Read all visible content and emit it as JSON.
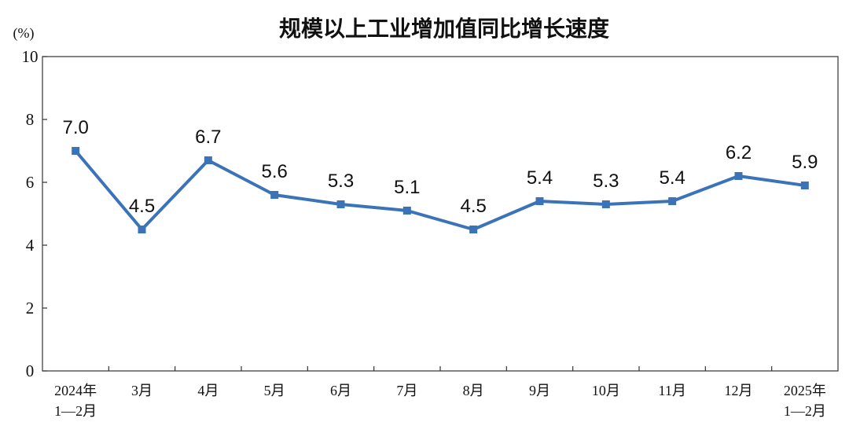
{
  "chart_data": {
    "type": "line",
    "title": "规模以上工业增加值同比增长速度",
    "ylabel": "(%)",
    "ylim": [
      0,
      10
    ],
    "yticks": [
      0,
      2,
      4,
      6,
      8,
      10
    ],
    "grid": false,
    "categories": [
      [
        "2024年",
        "1—2月"
      ],
      [
        "3月"
      ],
      [
        "4月"
      ],
      [
        "5月"
      ],
      [
        "6月"
      ],
      [
        "7月"
      ],
      [
        "8月"
      ],
      [
        "9月"
      ],
      [
        "10月"
      ],
      [
        "11月"
      ],
      [
        "12月"
      ],
      [
        "2025年",
        "1—2月"
      ]
    ],
    "series": [
      {
        "values": [
          7.0,
          4.5,
          6.7,
          5.6,
          5.3,
          5.1,
          4.5,
          5.4,
          5.3,
          5.4,
          6.2,
          5.9
        ],
        "labels": [
          "7.0",
          "4.5",
          "6.7",
          "5.6",
          "5.3",
          "5.1",
          "4.5",
          "5.4",
          "5.3",
          "5.4",
          "6.2",
          "5.9"
        ],
        "color": "#3B73B9"
      }
    ]
  }
}
